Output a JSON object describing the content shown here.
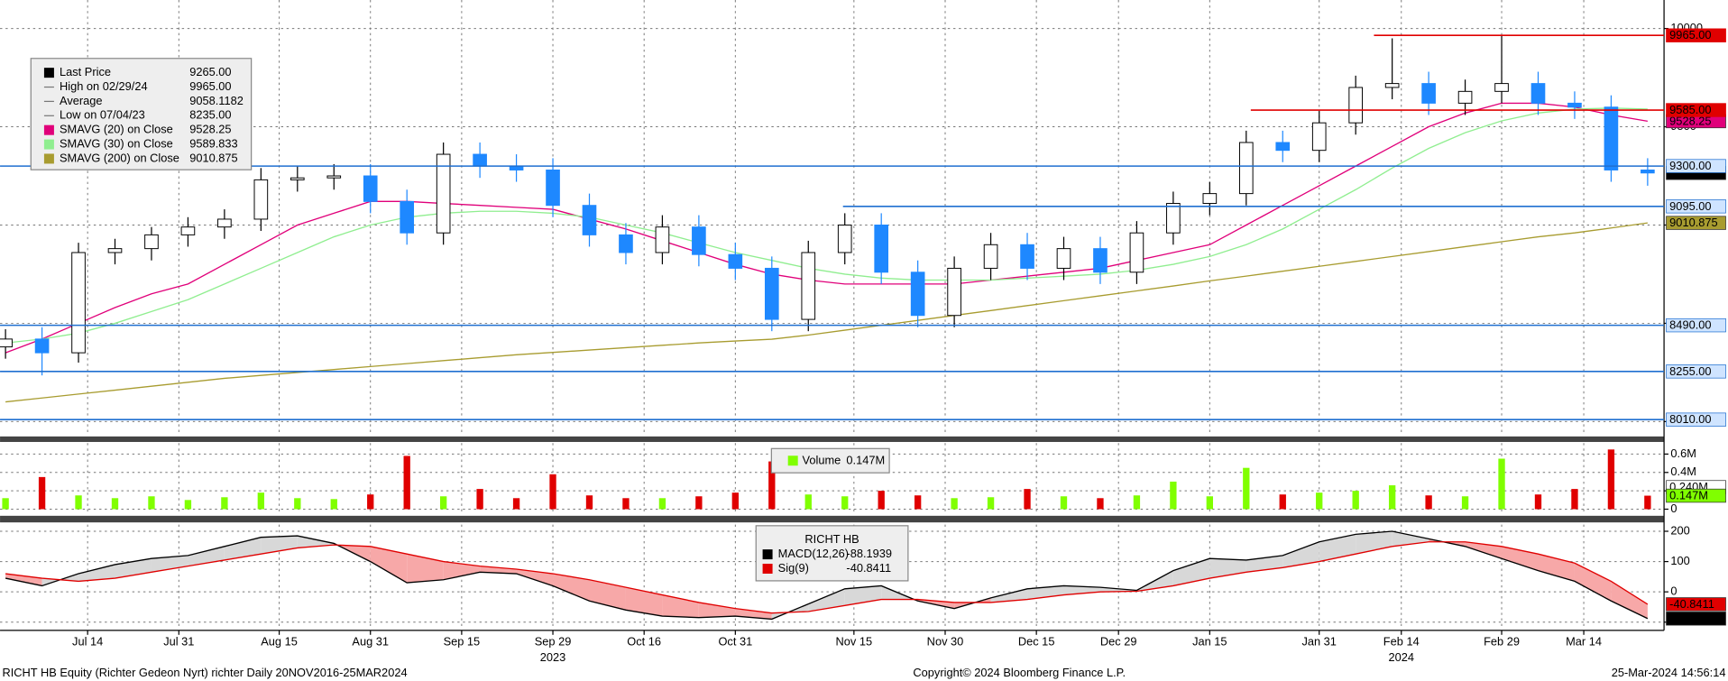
{
  "chart_data": [
    {
      "type": "candlestick",
      "x": [
        0,
        4,
        8,
        12,
        16,
        20,
        24,
        28,
        32,
        36,
        40,
        44,
        48,
        52,
        56,
        60,
        64,
        68,
        72,
        76,
        80,
        84,
        88,
        92,
        96,
        100,
        104,
        108,
        112,
        116,
        120,
        124,
        128,
        132,
        136,
        140,
        144,
        148,
        152,
        156,
        160,
        164,
        168,
        172,
        176,
        180
      ],
      "open": [
        8380,
        8420,
        8350,
        8860,
        8880,
        8950,
        8990,
        9030,
        9230,
        9240,
        9250,
        9120,
        8960,
        9360,
        9300,
        9280,
        9100,
        8950,
        8860,
        8990,
        8850,
        8780,
        8520,
        8860,
        9000,
        8760,
        8540,
        8780,
        8900,
        8780,
        8880,
        8760,
        8960,
        9110,
        9160,
        9420,
        9380,
        9520,
        9700,
        9720,
        9620,
        9680,
        9720,
        9620,
        9600,
        9280
      ],
      "high": [
        8470,
        8480,
        8910,
        8930,
        8990,
        9040,
        9080,
        9290,
        9300,
        9310,
        9310,
        9180,
        9420,
        9420,
        9360,
        9340,
        9160,
        9010,
        9050,
        9050,
        8910,
        8840,
        8920,
        9060,
        9060,
        8820,
        8840,
        8960,
        8960,
        8940,
        8940,
        9020,
        9170,
        9220,
        9480,
        9480,
        9580,
        9760,
        9950,
        9780,
        9740,
        9965,
        9780,
        9680,
        9660,
        9340
      ],
      "low": [
        8320,
        8235,
        8300,
        8800,
        8820,
        8890,
        8930,
        8970,
        9170,
        9180,
        9060,
        8900,
        8900,
        9240,
        9220,
        9040,
        8890,
        8800,
        8800,
        8790,
        8720,
        8460,
        8460,
        8800,
        8700,
        8480,
        8480,
        8720,
        8720,
        8720,
        8700,
        8700,
        8900,
        9050,
        9100,
        9320,
        9320,
        9460,
        9640,
        9560,
        9560,
        9620,
        9560,
        9540,
        9220,
        9200
      ],
      "close": [
        8420,
        8350,
        8860,
        8880,
        8950,
        8990,
        9030,
        9230,
        9240,
        9250,
        9120,
        8960,
        9360,
        9300,
        9280,
        9100,
        8950,
        8860,
        8990,
        8850,
        8780,
        8520,
        8860,
        9000,
        8760,
        8540,
        8780,
        8900,
        8780,
        8880,
        8760,
        8960,
        9110,
        9160,
        9420,
        9380,
        9520,
        9700,
        9720,
        9620,
        9680,
        9720,
        9620,
        9600,
        9280,
        9265
      ],
      "up_color": "#ffffff",
      "down_color": "#1e88ff",
      "xlim": [
        -0.6,
        181.8
      ],
      "xticks": [
        {
          "value": 9,
          "label": "Jul 14"
        },
        {
          "value": 19,
          "label": "Jul 31"
        },
        {
          "value": 30,
          "label": "Aug 15"
        },
        {
          "value": 40,
          "label": "Aug 31"
        },
        {
          "value": 50,
          "label": "Sep 15"
        },
        {
          "value": 60,
          "label": "Sep 29"
        },
        {
          "value": 70,
          "label": "Oct 16"
        },
        {
          "value": 80,
          "label": "Oct 31"
        },
        {
          "value": 93,
          "label": "Nov 15"
        },
        {
          "value": 103,
          "label": "Nov 30"
        },
        {
          "value": 113,
          "label": "Dec 15"
        },
        {
          "value": 122,
          "label": "Dec 29"
        },
        {
          "value": 132,
          "label": "Jan 15"
        },
        {
          "value": 144,
          "label": "Jan 31"
        },
        {
          "value": 153,
          "label": "Feb 14"
        },
        {
          "value": 164,
          "label": "Feb 29"
        },
        {
          "value": 173,
          "label": "Mar 14"
        }
      ],
      "year_labels": [
        {
          "value": 60,
          "label": "2023"
        },
        {
          "value": 153,
          "label": "2024"
        }
      ],
      "ylim": [
        7930,
        10145
      ],
      "yticks": [
        8000,
        8500,
        9000,
        9500,
        10000
      ],
      "grid": true,
      "series": [
        {
          "name": "SMAVG (20)  on Close",
          "color": "#e0007a",
          "value_label": "9528.25",
          "values": [
            8350,
            8420,
            8500,
            8580,
            8650,
            8700,
            8800,
            8900,
            9000,
            9060,
            9120,
            9120,
            9110,
            9100,
            9090,
            9080,
            9030,
            8980,
            8920,
            8860,
            8800,
            8750,
            8720,
            8700,
            8700,
            8700,
            8700,
            8720,
            8740,
            8760,
            8780,
            8820,
            8860,
            8900,
            9000,
            9100,
            9200,
            9300,
            9400,
            9500,
            9570,
            9620,
            9620,
            9600,
            9560,
            9528.25
          ]
        },
        {
          "name": "SMAVG (30)  on Close",
          "color": "#90ee90",
          "value_label": "9589.833",
          "values": [
            8400,
            8420,
            8450,
            8500,
            8560,
            8620,
            8700,
            8780,
            8860,
            8940,
            9000,
            9040,
            9060,
            9070,
            9070,
            9060,
            9040,
            9000,
            8960,
            8910,
            8860,
            8820,
            8780,
            8750,
            8730,
            8720,
            8720,
            8720,
            8730,
            8740,
            8750,
            8770,
            8800,
            8840,
            8900,
            8980,
            9080,
            9180,
            9290,
            9390,
            9470,
            9530,
            9570,
            9590,
            9595,
            9589.833
          ]
        },
        {
          "name": "SMAVG (200)  on Close",
          "color": "#a89c30",
          "value_label": "9010.875",
          "values": [
            8100,
            8120,
            8140,
            8160,
            8180,
            8200,
            8220,
            8235,
            8250,
            8265,
            8280,
            8295,
            8310,
            8325,
            8340,
            8352,
            8364,
            8376,
            8388,
            8400,
            8410,
            8419,
            8440,
            8465,
            8490,
            8515,
            8540,
            8565,
            8590,
            8615,
            8640,
            8665,
            8690,
            8716,
            8740,
            8765,
            8790,
            8815,
            8840,
            8865,
            8890,
            8915,
            8940,
            8960,
            8985,
            9010.875
          ]
        }
      ],
      "legend": [
        {
          "name": "Last Price",
          "value_label": "9265.00",
          "color": "#000000"
        },
        {
          "name": "High on 02/29/24",
          "value_label": "9965.00"
        },
        {
          "name": "Average",
          "value_label": "9058.1182"
        },
        {
          "name": "Low on 07/04/23",
          "value_label": "8235.00"
        }
      ],
      "tags": [
        {
          "value": 9528.25,
          "label": "9528.25",
          "box_color": "#e0007a",
          "text_color": "#ffffff"
        },
        {
          "value": 9265,
          "label": "9265.00",
          "box_color": "#000000",
          "text_color": "#ffffff"
        },
        {
          "value": 9010.875,
          "label": "9010.875",
          "box_color": "#a89c30",
          "text_color": "#000000"
        }
      ],
      "levels": [
        {
          "value": 9965,
          "label": "9965.00",
          "x_start": 150,
          "color": "#e00000",
          "box_color": "#e00000",
          "text_color": "#ffffff"
        },
        {
          "value": 9585,
          "label": "9585.00",
          "x_start": 136.5,
          "color": "#e00000",
          "box_color": "#e00000",
          "text_color": "#ffffff"
        },
        {
          "value": 9300,
          "label": "9300.00",
          "color": "#1f6fd0",
          "box_color": "#cfe4ff",
          "text_color": "#000000"
        },
        {
          "value": 9095,
          "label": "9095.00",
          "x_start": 91.8,
          "color": "#1f6fd0",
          "box_color": "#cfe4ff",
          "text_color": "#000000"
        },
        {
          "value": 8490,
          "label": "8490.00",
          "color": "#1f6fd0",
          "box_color": "#cfe4ff",
          "text_color": "#000000"
        },
        {
          "value": 8255,
          "label": "8255.00",
          "color": "#1f6fd0",
          "box_color": "#cfe4ff",
          "text_color": "#000000"
        },
        {
          "value": 8010,
          "label": "8010.00",
          "color": "#1f6fd0",
          "box_color": "#cfe4ff",
          "text_color": "#000000"
        }
      ]
    },
    {
      "type": "bar",
      "title": "Volume",
      "value_label": "0.147M",
      "color": "#80ff00",
      "values": [
        0.12,
        0.35,
        0.15,
        0.12,
        0.14,
        0.1,
        0.13,
        0.18,
        0.12,
        0.11,
        0.16,
        0.58,
        0.14,
        0.22,
        0.12,
        0.38,
        0.15,
        0.12,
        0.12,
        0.14,
        0.18,
        0.52,
        0.16,
        0.14,
        0.2,
        0.15,
        0.12,
        0.13,
        0.22,
        0.14,
        0.12,
        0.15,
        0.3,
        0.14,
        0.45,
        0.16,
        0.18,
        0.2,
        0.26,
        0.15,
        0.14,
        0.55,
        0.16,
        0.22,
        0.65,
        0.147
      ],
      "up_color": "#80ff00",
      "down_color": "#e00000",
      "ylim": [
        -0.06,
        0.72
      ],
      "yticks": [
        0,
        {
          "value": 0.2,
          "label": "0.2M"
        },
        {
          "value": 0.4,
          "label": "0.4M"
        },
        {
          "value": 0.6,
          "label": "0.6M"
        }
      ],
      "tags": [
        {
          "value": 0.24,
          "label": "0.240M",
          "box_color": "#ffffff",
          "text_color": "#000000"
        },
        {
          "value": 0.147,
          "label": "0.147M",
          "box_color": "#80ff00",
          "text_color": "#000000"
        }
      ]
    },
    {
      "type": "line",
      "title": "RICHT HB",
      "series": [
        {
          "name": "MACD(12,26)",
          "color": "#000000",
          "value_label": "-88.1939",
          "box_color": "#000000",
          "text_color": "#ffffff",
          "values": [
            45,
            20,
            60,
            90,
            110,
            120,
            150,
            180,
            185,
            160,
            100,
            30,
            40,
            65,
            60,
            20,
            -30,
            -60,
            -80,
            -85,
            -80,
            -90,
            -40,
            10,
            20,
            -30,
            -55,
            -20,
            10,
            20,
            15,
            5,
            70,
            110,
            105,
            120,
            165,
            190,
            200,
            175,
            150,
            110,
            70,
            35,
            -30,
            -88.1939
          ]
        },
        {
          "name": "Sig(9)",
          "color": "#e00000",
          "value_label": "-40.8411",
          "box_color": "#e00000",
          "text_color": "#ffffff",
          "values": [
            60,
            45,
            35,
            45,
            65,
            85,
            105,
            125,
            145,
            155,
            150,
            125,
            100,
            85,
            75,
            60,
            40,
            15,
            -10,
            -35,
            -55,
            -70,
            -65,
            -45,
            -25,
            -25,
            -35,
            -35,
            -25,
            -10,
            0,
            2,
            20,
            45,
            65,
            80,
            100,
            125,
            150,
            165,
            165,
            150,
            125,
            95,
            35,
            -40.8411
          ]
        }
      ],
      "fill_above_color": "#d8d8d8",
      "fill_below_color": "#f7a8a8",
      "ylim": [
        -120,
        222
      ],
      "yticks": [
        -100,
        0,
        100,
        200
      ]
    }
  ],
  "footer": {
    "left": "RICHT HB Equity (Richter Gedeon Nyrt) richter  Daily 20NOV2016-25MAR2024",
    "center": "Copyright© 2024 Bloomberg Finance L.P.",
    "right": "25-Mar-2024 14:56:14"
  }
}
